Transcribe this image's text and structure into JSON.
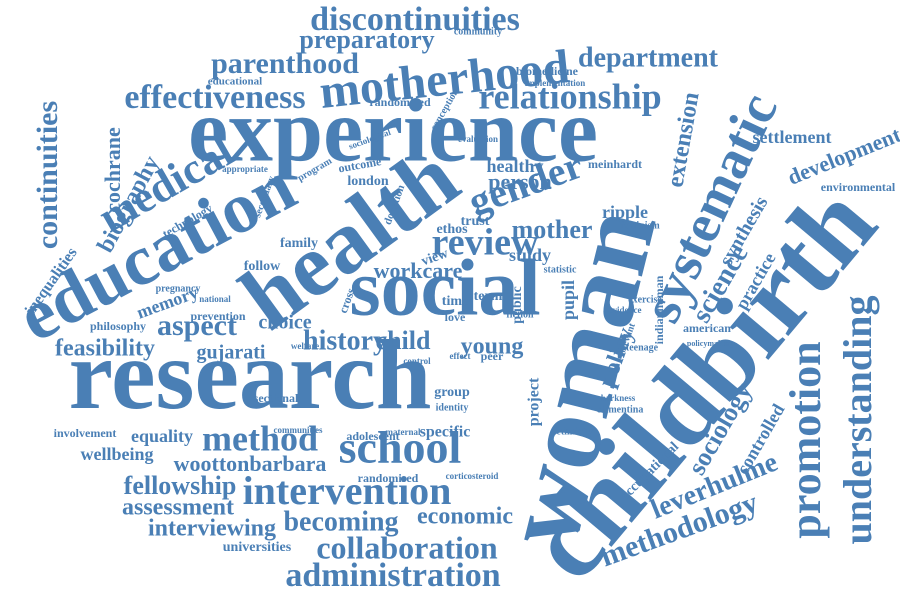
{
  "words": [
    "discontinuities",
    "preparatory",
    "community",
    "parenthood",
    "motherhood",
    "department",
    "biomedicine",
    "implementation",
    "educational",
    "effectiveness",
    "relationship",
    "randomized",
    "experience",
    "continuities",
    "cochrane",
    "biography",
    "medical",
    "education",
    "health",
    "social",
    "research",
    "childbirth",
    "woman",
    "systematic",
    "extension",
    "settlement",
    "development",
    "environmental",
    "synthesis",
    "science",
    "practice",
    "promotion",
    "understanding",
    "sociology",
    "controlled",
    "leverhulme",
    "methodology",
    "occupational",
    "policy",
    "gender",
    "person",
    "healthy",
    "meinhardt",
    "london",
    "review",
    "mother",
    "ripple",
    "feminism",
    "workcare",
    "history",
    "child",
    "young",
    "study",
    "pupil",
    "aspect",
    "feasibility",
    "gujarati",
    "choice",
    "philosophy",
    "memory",
    "prevention",
    "family",
    "follow",
    "technology",
    "inequalities",
    "method",
    "school",
    "equality",
    "involvement",
    "wellbeing",
    "woottonbarbara",
    "fellowship",
    "assessment",
    "interviewing",
    "universities",
    "intervention",
    "becoming",
    "economic",
    "collaboration",
    "administration",
    "randomised",
    "specific",
    "adolescent",
    "sectional",
    "group",
    "identity",
    "ethnicity",
    "clementina",
    "harkness",
    "american",
    "exercise",
    "evidence",
    "teenage",
    "project",
    "public",
    "fiction",
    "love",
    "time",
    "term",
    "trust",
    "ethos",
    "view",
    "cross",
    "outcome",
    "donation",
    "program",
    "sociological",
    "evaluation",
    "conception",
    "appropriate",
    "secondary",
    "national",
    "welfare",
    "pregnancy",
    "corticosteroid",
    "communities",
    "statistic",
    "maternal",
    "control",
    "effect",
    "peer",
    "policymaking",
    "indianhuman",
    "relevant"
  ]
}
